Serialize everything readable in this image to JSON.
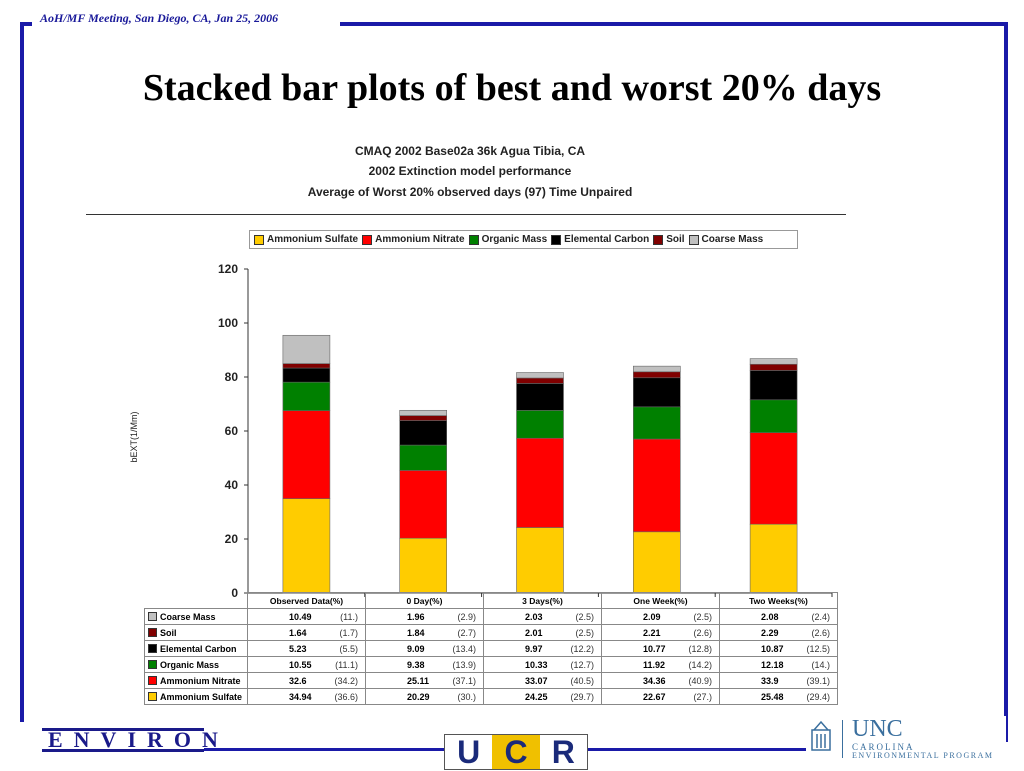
{
  "header": {
    "note": "AoH/MF Meeting, San Diego, CA,  Jan 25, 2006"
  },
  "slide": {
    "title": "Stacked bar plots of best and worst 20% days"
  },
  "chart_data": {
    "type": "bar",
    "stacked": true,
    "title": "CMAQ 2002 Base02a 36k Agua Tibia, CA",
    "subtitle_1": "2002 Extinction model performance",
    "subtitle_2": "Average of Worst 20% observed days (97) Time Unpaired",
    "ylabel": "bEXT(1/Mm)",
    "xlabel": "",
    "ylim": [
      0,
      120
    ],
    "yticks": [
      0,
      20,
      40,
      60,
      80,
      100,
      120
    ],
    "legend_placement": "top",
    "categories": [
      "Observed Data(%)",
      "0 Day(%)",
      "3 Days(%)",
      "One Week(%)",
      "Two Weeks(%)"
    ],
    "series": [
      {
        "name": "Ammonium Sulfate",
        "color": "#ffcc00",
        "values": [
          34.94,
          20.29,
          24.25,
          22.67,
          25.48
        ],
        "pct": [
          "(36.6)",
          "(30.)",
          "(29.7)",
          "(27.)",
          "(29.4)"
        ]
      },
      {
        "name": "Ammonium Nitrate",
        "color": "#ff0000",
        "values": [
          32.6,
          25.11,
          33.07,
          34.36,
          33.9
        ],
        "pct": [
          "(34.2)",
          "(37.1)",
          "(40.5)",
          "(40.9)",
          "(39.1)"
        ]
      },
      {
        "name": "Organic Mass",
        "color": "#008000",
        "values": [
          10.55,
          9.38,
          10.33,
          11.92,
          12.18
        ],
        "pct": [
          "(11.1)",
          "(13.9)",
          "(12.7)",
          "(14.2)",
          "(14.)"
        ]
      },
      {
        "name": "Elemental Carbon",
        "color": "#000000",
        "values": [
          5.23,
          9.09,
          9.97,
          10.77,
          10.87
        ],
        "pct": [
          "(5.5)",
          "(13.4)",
          "(12.2)",
          "(12.8)",
          "(12.5)"
        ]
      },
      {
        "name": "Soil",
        "color": "#800000",
        "values": [
          1.64,
          1.84,
          2.01,
          2.21,
          2.29
        ],
        "pct": [
          "(1.7)",
          "(2.7)",
          "(2.5)",
          "(2.6)",
          "(2.6)"
        ]
      },
      {
        "name": "Coarse Mass",
        "color": "#c0c0c0",
        "values": [
          10.49,
          1.96,
          2.03,
          2.09,
          2.08
        ],
        "pct": [
          "(11.)",
          "(2.9)",
          "(2.5)",
          "(2.5)",
          "(2.4)"
        ]
      }
    ]
  },
  "logos": {
    "environ": "ENVIRON",
    "ucr": [
      "U",
      "C",
      "R"
    ],
    "unc": {
      "word": "UNC",
      "line1": "CAROLINA",
      "line2": "ENVIRONMENTAL PROGRAM"
    }
  }
}
